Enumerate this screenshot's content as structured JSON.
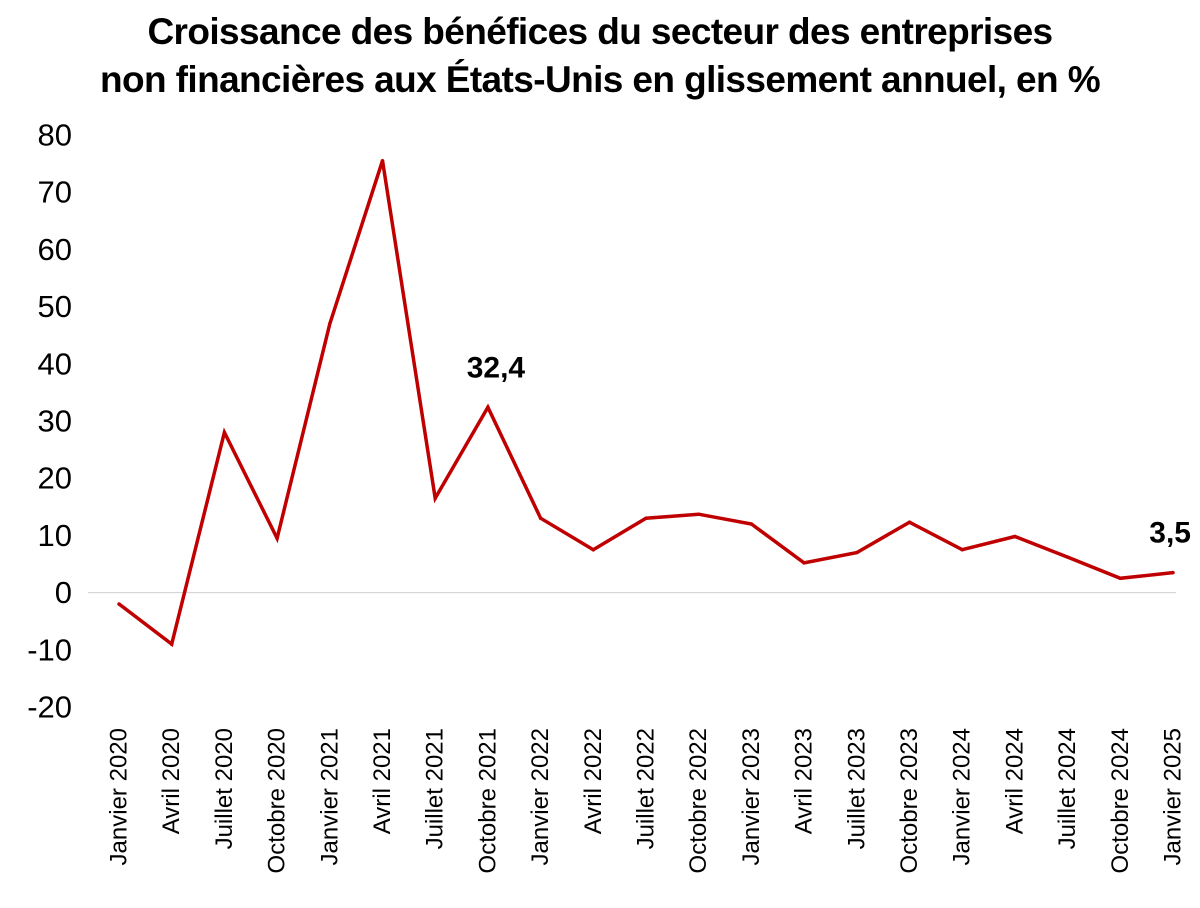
{
  "chart_data": {
    "type": "line",
    "title_lines": [
      "Croissance des bénéfices du secteur des entreprises",
      "non financières aux États-Unis en glissement annuel, en %"
    ],
    "xlabel": "",
    "ylabel": "",
    "ylim": [
      -20,
      80
    ],
    "yticks": [
      80,
      70,
      60,
      50,
      40,
      30,
      20,
      10,
      0,
      -10,
      -20
    ],
    "grid": false,
    "zero_line": true,
    "line_color": "#c00000",
    "categories": [
      "Janvier 2020",
      "Avril 2020",
      "Juillet 2020",
      "Octobre 2020",
      "Janvier 2021",
      "Avril 2021",
      "Juillet 2021",
      "Octobre 2021",
      "Janvier 2022",
      "Avril 2022",
      "Juillet 2022",
      "Octobre 2022",
      "Janvier 2023",
      "Avril 2023",
      "Juillet 2023",
      "Octobre 2023",
      "Janvier 2024",
      "Avril 2024",
      "Juillet 2024",
      "Octobre 2024",
      "Janvier 2025"
    ],
    "series": [
      {
        "values": [
          -2,
          -9,
          28,
          9.5,
          47,
          75.5,
          16.5,
          32.4,
          13,
          7.5,
          13,
          13.7,
          12,
          5.2,
          7,
          12.3,
          7.5,
          9.8,
          6.2,
          2.5,
          3.5
        ]
      }
    ],
    "annotations": [
      {
        "index": 7,
        "text": "32,4"
      },
      {
        "index": 20,
        "text": "3,5"
      }
    ]
  }
}
